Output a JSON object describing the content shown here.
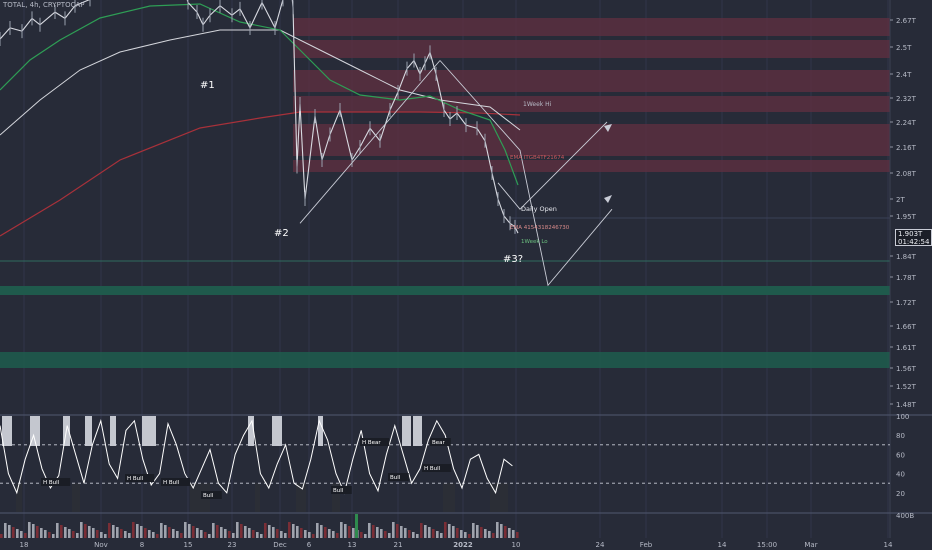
{
  "header": {
    "symbol": "TOTAL, 4h, CRYPTOCAP"
  },
  "price_badge": {
    "price": "1.903T",
    "countdown": "01:42:54"
  },
  "colors": {
    "background": "#272b38",
    "resistance_zone": "#5a2f40",
    "support_zone": "#1f5a4c",
    "ema_green": "#2e9e55",
    "ema_red": "#a8313a",
    "sma_white": "#d4d6dc",
    "oscillator_bull_bar": "#2b2e36",
    "oscillator_bear_bar": "#c4c7cf"
  },
  "chart_data": [
    {
      "type": "line",
      "title": "",
      "x_ticks": [
        "18",
        "Nov",
        "8",
        "15",
        "23",
        "Dec",
        "6",
        "13",
        "21",
        "2022",
        "10",
        "24",
        "Feb",
        "14",
        "15:00",
        "Mar",
        "14"
      ],
      "y_ticks": [
        "2.67T",
        "2.5T",
        "2.4T",
        "2.32T",
        "2.24T",
        "2.16T",
        "2.08T",
        "2T",
        "1.95T",
        "1.84T",
        "1.78T",
        "1.72T",
        "1.66T",
        "1.61T",
        "1.56T",
        "1.52T",
        "1.48T"
      ],
      "y_scale": "log",
      "ylim": [
        1.45,
        2.85
      ],
      "series": [
        {
          "x": [
            0,
            10,
            22,
            32,
            40,
            55,
            65,
            75,
            90,
            110,
            125,
            140,
            160,
            180,
            188,
            197,
            203,
            210,
            220,
            232,
            240,
            250,
            262,
            275,
            283,
            290,
            293,
            297,
            300,
            305,
            315,
            322,
            330,
            340,
            352,
            360,
            370,
            380,
            390,
            398,
            407,
            414,
            420,
            425,
            430,
            436,
            444,
            450,
            457,
            466,
            477,
            485,
            492,
            498,
            504,
            510,
            515,
            518
          ],
          "y": [
            2.55,
            2.62,
            2.6,
            2.68,
            2.64,
            2.72,
            2.68,
            2.76,
            2.8,
            2.85,
            2.9,
            2.92,
            2.94,
            2.96,
            2.78,
            2.72,
            2.64,
            2.7,
            2.76,
            2.7,
            2.74,
            2.62,
            2.78,
            2.62,
            2.8,
            2.95,
            2.75,
            2.1,
            2.3,
            2.0,
            2.26,
            2.12,
            2.2,
            2.28,
            2.12,
            2.16,
            2.22,
            2.18,
            2.28,
            2.34,
            2.42,
            2.45,
            2.4,
            2.44,
            2.48,
            2.4,
            2.28,
            2.25,
            2.27,
            2.23,
            2.22,
            2.18,
            2.08,
            2.0,
            1.95,
            1.93,
            1.92,
            1.903
          ]
        }
      ],
      "annotations": [
        {
          "text": "#1"
        },
        {
          "text": "#2"
        },
        {
          "text": "#3?"
        },
        {
          "text": "Daily Open"
        },
        {
          "text": "1Week Hi"
        },
        {
          "text": "EMA 4154318246730"
        },
        {
          "text": "1Week Lo"
        }
      ],
      "price_levels": [
        2.67,
        2.55,
        2.42,
        2.34,
        2.29,
        2.22,
        2.16,
        2.1,
        1.95,
        1.84,
        1.76,
        1.6
      ],
      "projection_paths": [
        [
          [
            440,
            2.45
          ],
          [
            520,
            2.15
          ],
          [
            548,
            1.76
          ],
          [
            612,
            1.97
          ]
        ],
        [
          [
            498,
            2.05
          ],
          [
            520,
            1.97
          ],
          [
            607,
            2.24
          ]
        ],
        [
          [
            300,
            1.93
          ],
          [
            440,
            2.45
          ]
        ]
      ]
    },
    {
      "type": "line",
      "title": "",
      "ylim": [
        0,
        100
      ],
      "y_ticks": [
        "100",
        "80",
        "60",
        "40",
        "20"
      ],
      "overbought": 70,
      "oversold": 30,
      "labels": [
        "H Bull",
        "H Bull",
        "H Bull",
        "Bull",
        "Bull",
        "H Bear",
        "Bull",
        "H Bull",
        "Bear"
      ]
    },
    {
      "type": "bar",
      "title": "",
      "y_ticks": [
        "400B"
      ]
    }
  ]
}
